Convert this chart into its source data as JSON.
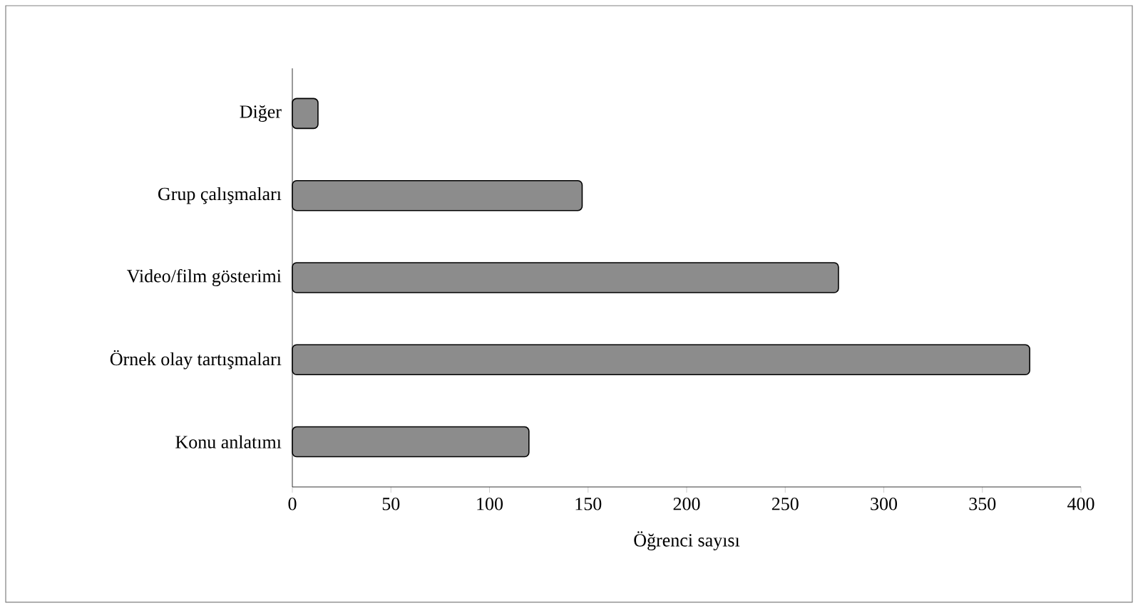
{
  "chart_data": {
    "type": "bar",
    "orientation": "horizontal",
    "xlabel": "Öğrenci sayısı",
    "categories": [
      "Diğer",
      "Grup çalışmaları",
      "Video/film gösterimi",
      "Örnek olay tartışmaları",
      "Konu anlatımı"
    ],
    "values": [
      13,
      147,
      277,
      374,
      120
    ],
    "color": "#8c8c8c",
    "xlim": [
      0,
      400
    ],
    "xticks": [
      0,
      50,
      100,
      150,
      200,
      250,
      300,
      350,
      400
    ],
    "grid": false
  }
}
